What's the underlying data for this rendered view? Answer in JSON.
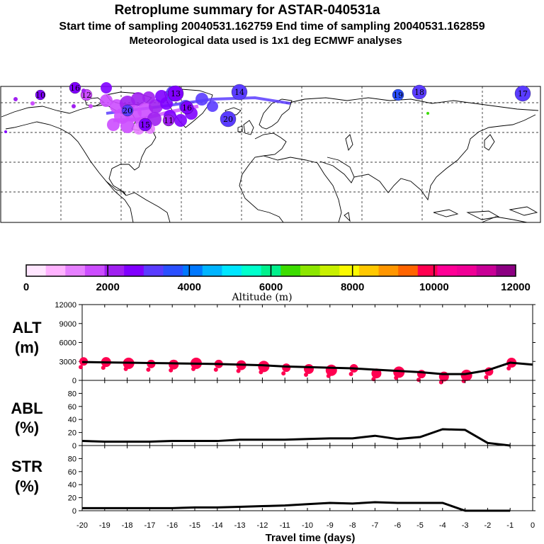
{
  "header": {
    "title": "Retroplume summary for ASTAR-040531a",
    "sampling": "Start time of sampling 20040531.162759     End time of sampling 20040531.162859",
    "met": "Meteorological data used is 1x1 deg ECMWF analyses"
  },
  "colors": {
    "scale": [
      "#ffe6ff",
      "#ffb3ff",
      "#e680ff",
      "#cc4dff",
      "#a020f0",
      "#8000ff",
      "#5a3cff",
      "#2b50ff",
      "#0078ff",
      "#00b4ff",
      "#00e6ff",
      "#00ffcc",
      "#00f08c",
      "#3cdc00",
      "#8ce600",
      "#c8f000",
      "#fafa00",
      "#ffc800",
      "#ff9600",
      "#ff6400",
      "#ff0050",
      "#ff0096",
      "#f00096",
      "#c80096",
      "#8c0082"
    ],
    "alt_marker": "#ff0050",
    "line": "#000000"
  },
  "colorbar": {
    "label": "Altitude (m)",
    "ticks": [
      "0",
      "2000",
      "4000",
      "6000",
      "8000",
      "10000",
      "12000"
    ]
  },
  "map": {
    "labels": [
      "10",
      "11",
      "12",
      "13",
      "14",
      "15",
      "16",
      "17",
      "18",
      "19",
      "20"
    ]
  },
  "chart_data": [
    {
      "type": "scatter",
      "name": "map_trajectory",
      "description_label": "Retroplume positions",
      "points": [
        {
          "label": "10",
          "altitude": 2800
        },
        {
          "label": "11",
          "altitude": 2200
        },
        {
          "label": "12",
          "altitude": 1600
        },
        {
          "label": "13",
          "altitude": 2800
        },
        {
          "label": "14",
          "altitude": 3000
        },
        {
          "label": "15",
          "altitude": 2400
        },
        {
          "label": "16",
          "altitude": 2600
        },
        {
          "label": "17",
          "altitude": 3000
        },
        {
          "label": "18",
          "altitude": 3200
        },
        {
          "label": "19",
          "altitude": 3400
        },
        {
          "label": "20",
          "altitude": 3300
        }
      ]
    },
    {
      "type": "line",
      "name": "ALT",
      "ylabel_line1": "ALT",
      "ylabel_line2": "(m)",
      "ylim": [
        0,
        12000
      ],
      "yticks": [
        "0",
        "3000",
        "6000",
        "9000",
        "12000"
      ],
      "x": [
        -20,
        -19,
        -18,
        -17,
        -16,
        -15,
        -14,
        -13,
        -12,
        -11,
        -10,
        -9,
        -8,
        -7,
        -6,
        -5,
        -4,
        -3,
        -2,
        -1,
        0
      ],
      "values": [
        2900,
        2850,
        2800,
        2750,
        2700,
        2650,
        2600,
        2500,
        2400,
        2200,
        2100,
        2000,
        1900,
        1700,
        1500,
        1300,
        1000,
        1000,
        1600,
        2800,
        2500
      ],
      "scatter_x": [
        -20,
        -19,
        -18,
        -17,
        -16,
        -15,
        -14,
        -13,
        -12,
        -11,
        -10,
        -9,
        -8,
        -7,
        -6,
        -5,
        -4,
        -3,
        -2,
        -1
      ],
      "scatter_y": [
        3000,
        2900,
        2700,
        2600,
        2500,
        2700,
        2600,
        2400,
        2200,
        2000,
        1800,
        1600,
        1900,
        1100,
        1300,
        1000,
        600,
        800,
        1400,
        2800
      ]
    },
    {
      "type": "line",
      "name": "ABL",
      "ylabel_line1": "ABL",
      "ylabel_line2": "(%)",
      "ylim": [
        0,
        100
      ],
      "yticks": [
        "0",
        "20",
        "40",
        "60",
        "80"
      ],
      "x": [
        -20,
        -19,
        -18,
        -17,
        -16,
        -15,
        -14,
        -13,
        -12,
        -11,
        -10,
        -9,
        -8,
        -7,
        -6,
        -5,
        -4,
        -3,
        -2,
        -1
      ],
      "values": [
        7,
        6,
        6,
        6,
        7,
        7,
        7,
        9,
        9,
        9,
        10,
        11,
        11,
        15,
        10,
        13,
        25,
        24,
        4,
        0
      ]
    },
    {
      "type": "line",
      "name": "STR",
      "ylabel_line1": "STR",
      "ylabel_line2": "(%)",
      "ylim": [
        0,
        100
      ],
      "yticks": [
        "0",
        "20",
        "40",
        "60",
        "80"
      ],
      "x": [
        -20,
        -19,
        -18,
        -17,
        -16,
        -15,
        -14,
        -13,
        -12,
        -11,
        -10,
        -9,
        -8,
        -7,
        -6,
        -5,
        -4,
        -3,
        -2,
        -1
      ],
      "values": [
        4,
        4,
        4,
        4,
        4,
        5,
        5,
        6,
        7,
        8,
        10,
        12,
        11,
        13,
        12,
        12,
        12,
        0,
        0,
        0
      ]
    }
  ],
  "xaxis": {
    "label": "Travel time (days)",
    "ticks": [
      "-20",
      "-19",
      "-18",
      "-17",
      "-16",
      "-15",
      "-14",
      "-13",
      "-12",
      "-11",
      "-10",
      "-9",
      "-8",
      "-7",
      "-6",
      "-5",
      "-4",
      "-3",
      "-2",
      "-1",
      "0"
    ]
  }
}
